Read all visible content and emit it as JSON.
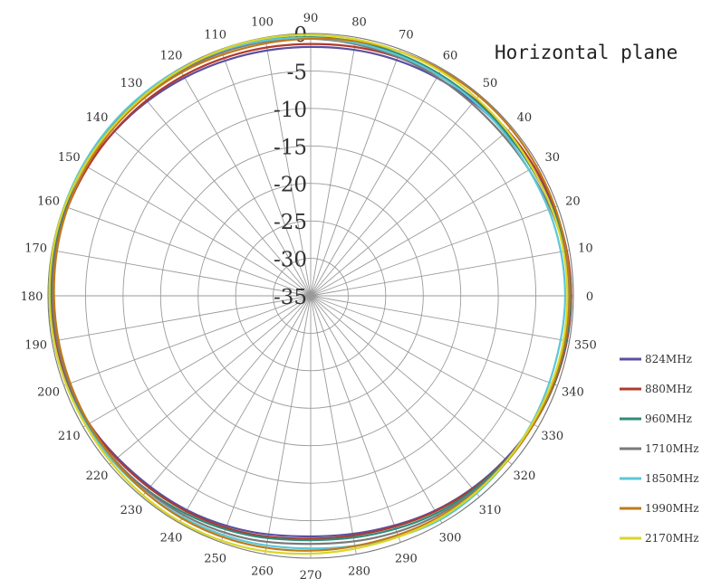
{
  "chart_data": {
    "type": "polar-line",
    "title": "Horizontal plane",
    "r_axis": {
      "min": -35,
      "max": 0,
      "ticks": [
        0,
        -5,
        -10,
        -15,
        -20,
        -25,
        -30,
        -35
      ],
      "tick_labels": [
        "0",
        "-5",
        "-10",
        "-15",
        "-20",
        "-25",
        "-30",
        "-35"
      ]
    },
    "angle_axis": {
      "unit": "degrees",
      "direction": "counterclockwise",
      "zero_at": "right",
      "ticks": [
        0,
        10,
        20,
        30,
        40,
        50,
        60,
        70,
        80,
        90,
        100,
        110,
        120,
        130,
        140,
        150,
        160,
        170,
        180,
        190,
        200,
        210,
        220,
        230,
        240,
        250,
        260,
        270,
        280,
        290,
        300,
        310,
        320,
        330,
        340,
        350
      ],
      "tick_labels": [
        "0",
        "10",
        "20",
        "30",
        "40",
        "50",
        "60",
        "70",
        "80",
        "90",
        "100",
        "110",
        "120",
        "130",
        "140",
        "150",
        "160",
        "170",
        "180",
        "190",
        "200",
        "210",
        "220",
        "230",
        "240",
        "250",
        "260",
        "270",
        "280",
        "290",
        "300",
        "310",
        "320",
        "330",
        "340",
        "350"
      ]
    },
    "grid": true,
    "legend_position": "bottom-right",
    "angles": [
      0,
      15,
      30,
      45,
      60,
      75,
      90,
      105,
      120,
      135,
      150,
      165,
      180,
      195,
      210,
      225,
      240,
      255,
      270,
      285,
      300,
      315,
      330,
      345
    ],
    "series": [
      {
        "name": "824MHz",
        "color": "#5a4fa0",
        "values": [
          -0.3,
          -0.5,
          -0.9,
          -1.2,
          -1.4,
          -1.6,
          -1.8,
          -1.7,
          -1.4,
          -1.0,
          -0.6,
          -0.3,
          -0.2,
          -0.4,
          -0.9,
          -1.6,
          -2.0,
          -2.5,
          -2.9,
          -2.6,
          -1.9,
          -1.3,
          -0.8,
          -0.4
        ]
      },
      {
        "name": "880MHz",
        "color": "#b03a2e",
        "values": [
          -0.3,
          -0.4,
          -0.6,
          -0.8,
          -1.0,
          -1.2,
          -1.4,
          -1.3,
          -1.1,
          -0.9,
          -0.7,
          -0.5,
          -0.5,
          -0.6,
          -0.9,
          -1.4,
          -1.8,
          -2.2,
          -2.6,
          -2.4,
          -1.8,
          -1.2,
          -0.7,
          -0.4
        ]
      },
      {
        "name": "960MHz",
        "color": "#2e8b7a",
        "values": [
          -0.4,
          -0.6,
          -1.0,
          -1.0,
          -0.8,
          -0.6,
          -0.5,
          -0.3,
          -0.2,
          -0.2,
          -0.2,
          -0.2,
          -0.3,
          -0.3,
          -0.6,
          -1.0,
          -1.5,
          -2.0,
          -2.4,
          -2.1,
          -1.5,
          -1.1,
          -0.7,
          -0.5
        ]
      },
      {
        "name": "1710MHz",
        "color": "#7a7a7a",
        "values": [
          -0.6,
          -0.8,
          -1.4,
          -1.6,
          -1.3,
          -1.0,
          -0.7,
          -0.5,
          -0.4,
          -0.4,
          -0.5,
          -0.5,
          -0.6,
          -0.7,
          -0.8,
          -1.0,
          -1.2,
          -1.5,
          -1.9,
          -1.6,
          -1.2,
          -0.9,
          -0.8,
          -0.7
        ]
      },
      {
        "name": "1850MHz",
        "color": "#5bc7d8",
        "values": [
          -1.1,
          -1.2,
          -1.4,
          -1.2,
          -1.0,
          -0.8,
          -0.6,
          -0.3,
          -0.1,
          0.0,
          0.0,
          -0.1,
          -0.2,
          -0.3,
          -0.5,
          -0.7,
          -0.9,
          -1.1,
          -1.3,
          -1.0,
          -0.5,
          -0.7,
          -1.0,
          -1.2
        ]
      },
      {
        "name": "1990MHz",
        "color": "#c07a1a",
        "values": [
          -0.5,
          -0.4,
          -0.3,
          -0.2,
          -0.2,
          -0.4,
          -0.7,
          -0.8,
          -0.6,
          -0.5,
          -0.5,
          -0.6,
          -0.8,
          -0.9,
          -0.9,
          -0.8,
          -0.7,
          -0.8,
          -1.0,
          -1.1,
          -0.9,
          -0.8,
          -0.7,
          -0.6
        ]
      },
      {
        "name": "2170MHz",
        "color": "#d9d628",
        "values": [
          -0.8,
          -0.8,
          -0.9,
          -0.7,
          -0.4,
          -0.3,
          -0.2,
          -0.1,
          -0.2,
          -0.3,
          -0.2,
          -0.1,
          -0.2,
          -0.3,
          -0.4,
          -0.3,
          -0.2,
          -0.3,
          -0.6,
          -0.8,
          -0.7,
          -0.8,
          -0.9,
          -0.8
        ]
      }
    ]
  }
}
